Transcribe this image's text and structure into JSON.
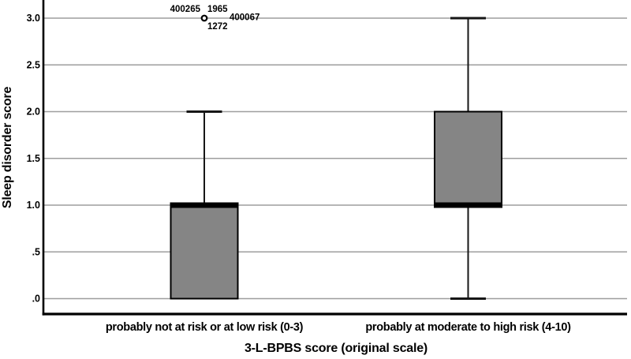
{
  "colors": {
    "background": "#ffffff",
    "box_fill": "#858585",
    "box_border": "#000000",
    "median": "#000000",
    "whisker": "#161616",
    "gridline": "#9e9e9e",
    "axis": "#000000",
    "text": "#000000",
    "outlier_fill": "#ffffff"
  },
  "chart_data": {
    "type": "boxplot",
    "title": "",
    "xlabel": "3-L-BPBS score (original scale)",
    "ylabel": "Sleep disorder score",
    "ylim": [
      0.0,
      3.0
    ],
    "grid": "horizontal gray lines at every 0.5",
    "legend": "none",
    "yticks": [
      {
        "label": ".0",
        "value": 0.0
      },
      {
        "label": ".5",
        "value": 0.5
      },
      {
        "label": "1.0",
        "value": 1.0
      },
      {
        "label": "1.5",
        "value": 1.5
      },
      {
        "label": "2.0",
        "value": 2.0
      },
      {
        "label": "2.5",
        "value": 2.5
      },
      {
        "label": "3.0",
        "value": 3.0
      }
    ],
    "categories": [
      "probably not at risk or at low risk (0-3)",
      "probably at moderate to high risk (4-10)"
    ],
    "series": [
      {
        "category": "probably not at risk or at low risk (0-3)",
        "whisker_low": 0.0,
        "q1": 0.0,
        "median": 1.0,
        "q3": 1.0,
        "whisker_high": 2.0,
        "outliers": [
          {
            "value": 3.0,
            "labels": [
              "400265",
              "1965",
              "400067",
              "1272"
            ]
          }
        ]
      },
      {
        "category": "probably at moderate to high risk (4-10)",
        "whisker_low": 0.0,
        "q1": 1.0,
        "median": 1.0,
        "q3": 2.0,
        "whisker_high": 3.0,
        "outliers": []
      }
    ]
  }
}
